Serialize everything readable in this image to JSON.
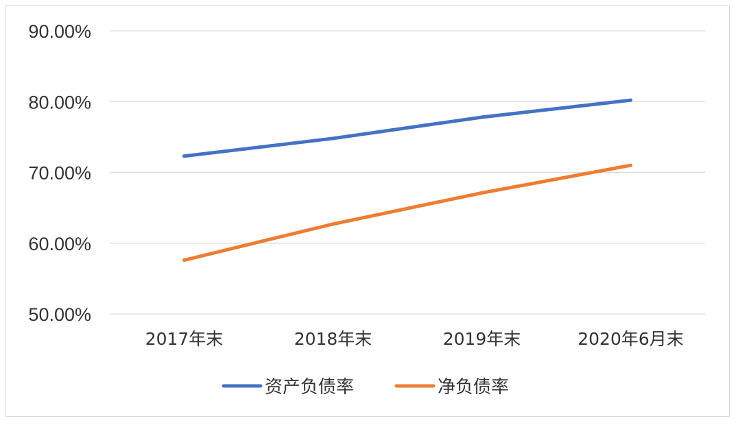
{
  "chart_data": {
    "type": "line",
    "title": "",
    "xlabel": "",
    "ylabel": "",
    "categories": [
      "2017年末",
      "2018年末",
      "2019年末",
      "2020年6月末"
    ],
    "y_ticks": [
      "50.00%",
      "60.00%",
      "70.00%",
      "80.00%",
      "90.00%"
    ],
    "ylim": [
      50,
      90
    ],
    "grid": true,
    "legend_position": "bottom",
    "series": [
      {
        "name": "资产负债率",
        "color": "#4472c4",
        "values": [
          72.3,
          74.8,
          77.8,
          80.2
        ]
      },
      {
        "name": "净负债率",
        "color": "#ed7d31",
        "values": [
          57.6,
          62.7,
          67.1,
          71.0
        ]
      }
    ]
  }
}
